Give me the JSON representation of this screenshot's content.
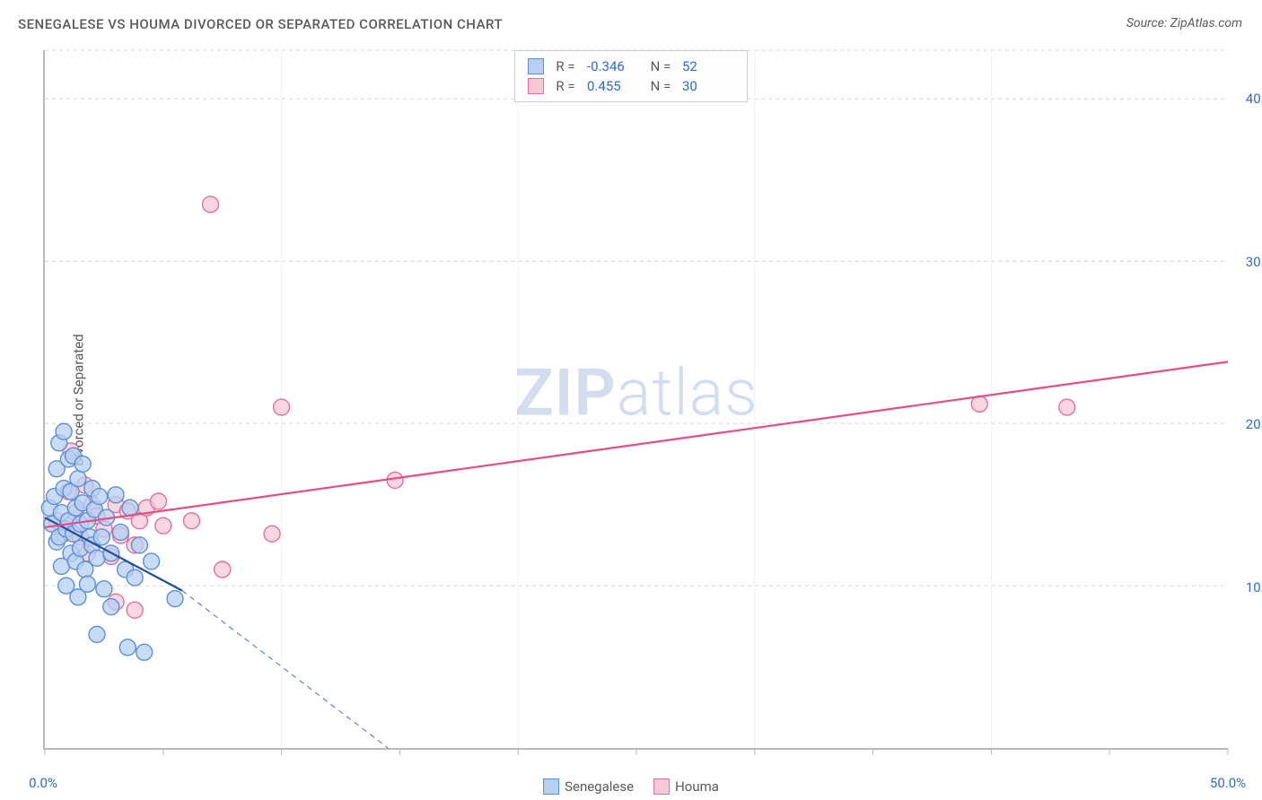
{
  "title": "SENEGALESE VS HOUMA DIVORCED OR SEPARATED CORRELATION CHART",
  "source": "Source: ZipAtlas.com",
  "watermark_a": "ZIP",
  "watermark_b": "atlas",
  "ylabel": "Divorced or Separated",
  "chart": {
    "type": "scatter",
    "xlim": [
      0,
      50
    ],
    "ylim": [
      0,
      43
    ],
    "x_ticks": [
      0,
      5,
      10,
      15,
      20,
      25,
      30,
      35,
      40,
      45,
      50
    ],
    "x_tick_labels": {
      "0": "0.0%",
      "50": "50.0%"
    },
    "y_ticks": [
      10,
      20,
      30,
      40
    ],
    "y_tick_labels": {
      "10": "10.0%",
      "20": "20.0%",
      "30": "30.0%",
      "40": "40.0%"
    },
    "background_color": "#ffffff",
    "grid_color": "#d4d4d4",
    "axis_color": "#b8b8b8",
    "label_color": "#5a5a5a",
    "value_color": "#2f6bd6",
    "marker_radius": 9,
    "marker_stroke_width": 1.4,
    "line_width": 2.2,
    "series": [
      {
        "name": "Senegalese",
        "fill": "#b5d0f2",
        "stroke": "#5c8fd6",
        "line_color": "#1f4e9c",
        "r": -0.346,
        "n": 52,
        "trend": {
          "x1": 0,
          "y1": 14.2,
          "x2": 5.8,
          "y2": 9.7,
          "dash_x2": 14.5,
          "dash_y2": 0
        },
        "points": [
          [
            0.2,
            14.8
          ],
          [
            0.3,
            13.8
          ],
          [
            0.4,
            15.5
          ],
          [
            0.5,
            12.7
          ],
          [
            0.5,
            17.2
          ],
          [
            0.6,
            13.0
          ],
          [
            0.6,
            18.8
          ],
          [
            0.7,
            14.5
          ],
          [
            0.7,
            11.2
          ],
          [
            0.8,
            19.5
          ],
          [
            0.8,
            16.0
          ],
          [
            0.9,
            13.5
          ],
          [
            0.9,
            10.0
          ],
          [
            1.0,
            14.0
          ],
          [
            1.0,
            17.8
          ],
          [
            1.1,
            12.0
          ],
          [
            1.1,
            15.8
          ],
          [
            1.2,
            13.2
          ],
          [
            1.2,
            18.0
          ],
          [
            1.3,
            11.5
          ],
          [
            1.3,
            14.8
          ],
          [
            1.4,
            16.6
          ],
          [
            1.4,
            9.3
          ],
          [
            1.5,
            13.8
          ],
          [
            1.5,
            12.3
          ],
          [
            1.6,
            15.1
          ],
          [
            1.6,
            17.5
          ],
          [
            1.7,
            11.0
          ],
          [
            1.8,
            14.0
          ],
          [
            1.8,
            10.1
          ],
          [
            1.9,
            13.0
          ],
          [
            2.0,
            16.0
          ],
          [
            2.0,
            12.5
          ],
          [
            2.1,
            14.7
          ],
          [
            2.2,
            11.7
          ],
          [
            2.3,
            15.5
          ],
          [
            2.4,
            13.0
          ],
          [
            2.5,
            9.8
          ],
          [
            2.6,
            14.2
          ],
          [
            2.8,
            12.0
          ],
          [
            3.0,
            15.6
          ],
          [
            3.2,
            13.3
          ],
          [
            3.4,
            11.0
          ],
          [
            3.6,
            14.8
          ],
          [
            3.8,
            10.5
          ],
          [
            4.0,
            12.5
          ],
          [
            4.5,
            11.5
          ],
          [
            2.2,
            7.0
          ],
          [
            2.8,
            8.7
          ],
          [
            3.5,
            6.2
          ],
          [
            4.2,
            5.9
          ],
          [
            5.5,
            9.2
          ]
        ]
      },
      {
        "name": "Houma",
        "fill": "#f6c9d6",
        "stroke": "#e56f98",
        "line_color": "#e94b86",
        "r": 0.455,
        "n": 30,
        "trend": {
          "x1": 0,
          "y1": 13.6,
          "x2": 50,
          "y2": 23.8
        },
        "points": [
          [
            0.5,
            14.0
          ],
          [
            0.8,
            13.2
          ],
          [
            1.0,
            15.8
          ],
          [
            1.1,
            18.3
          ],
          [
            1.3,
            14.5
          ],
          [
            1.5,
            13.0
          ],
          [
            1.7,
            16.2
          ],
          [
            1.8,
            12.0
          ],
          [
            2.0,
            15.0
          ],
          [
            2.2,
            14.3
          ],
          [
            2.5,
            13.5
          ],
          [
            2.8,
            11.8
          ],
          [
            3.0,
            15.0
          ],
          [
            3.2,
            13.1
          ],
          [
            3.5,
            14.6
          ],
          [
            3.8,
            12.5
          ],
          [
            4.0,
            14.0
          ],
          [
            4.3,
            14.8
          ],
          [
            4.8,
            15.2
          ],
          [
            5.0,
            13.7
          ],
          [
            3.0,
            9.0
          ],
          [
            3.8,
            8.5
          ],
          [
            7.5,
            11.0
          ],
          [
            7.0,
            33.5
          ],
          [
            9.6,
            13.2
          ],
          [
            10.0,
            21.0
          ],
          [
            14.8,
            16.5
          ],
          [
            39.5,
            21.2
          ],
          [
            43.2,
            21.0
          ],
          [
            6.2,
            14.0
          ]
        ]
      }
    ]
  },
  "stats_box": {
    "rows": [
      {
        "swatch_fill": "#b5d0f2",
        "swatch_stroke": "#5c8fd6",
        "r": "-0.346",
        "n": "52"
      },
      {
        "swatch_fill": "#f6c9d6",
        "swatch_stroke": "#e56f98",
        "r": "0.455",
        "n": "30"
      }
    ],
    "r_label": "R =",
    "n_label": "N ="
  },
  "legend": [
    {
      "swatch_fill": "#b5d0f2",
      "swatch_stroke": "#5c8fd6",
      "label": "Senegalese"
    },
    {
      "swatch_fill": "#f6c9d6",
      "swatch_stroke": "#e56f98",
      "label": "Houma"
    }
  ]
}
